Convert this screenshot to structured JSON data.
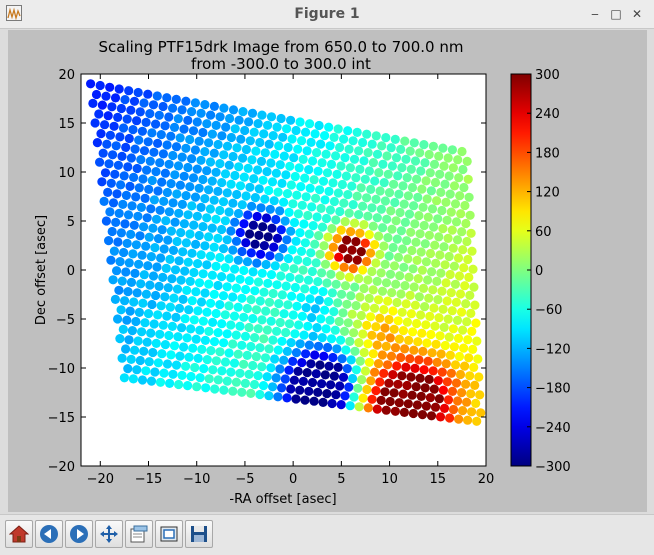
{
  "window": {
    "title": "Figure 1"
  },
  "window_controls": {
    "minimize": "‒",
    "maximize": "□",
    "close": "✕"
  },
  "toolbar": {
    "buttons": [
      "home-icon",
      "back-icon",
      "forward-icon",
      "pan-icon",
      "configure-icon",
      "zoom-icon",
      "save-icon"
    ]
  },
  "chart_data": {
    "type": "scatter",
    "title": "Scaling PTF15drk Image from 650.0 to 700.0 nm\nfrom -300.0 to 300.0 int",
    "xlabel": "-RA offset [asec]",
    "ylabel": "Dec offset [asec]",
    "xlim": [
      -22,
      20
    ],
    "ylim": [
      -20,
      20
    ],
    "xticks": [
      -20,
      -15,
      -10,
      -5,
      0,
      5,
      10,
      15,
      20
    ],
    "yticks": [
      -20,
      -15,
      -10,
      -5,
      0,
      5,
      10,
      15,
      20
    ],
    "grid": false,
    "colormap": "jet",
    "colorbar": {
      "min": -300,
      "max": 300,
      "ticks": [
        300,
        240,
        180,
        120,
        60,
        0,
        -60,
        -120,
        -180,
        -240,
        -300
      ]
    },
    "field_corners": [
      [
        -21,
        19
      ],
      [
        18,
        12
      ],
      [
        19.5,
        -15.5
      ],
      [
        -17.5,
        -11
      ]
    ],
    "background_value": -40,
    "features": [
      {
        "x": -3.3,
        "y": 3.5,
        "value": -290,
        "radius": 1.6,
        "halo": 3.2
      },
      {
        "x": 6.0,
        "y": 2.0,
        "value": 300,
        "radius": 1.2,
        "halo": 3.0
      },
      {
        "x": 2.8,
        "y": -12.0,
        "value": -290,
        "radius": 3.0,
        "halo": 5.0
      },
      {
        "x": 12.0,
        "y": -13.5,
        "value": 300,
        "radius": 3.2,
        "halo": 5.5
      },
      {
        "x": 9.5,
        "y": -6.5,
        "value": 160,
        "radius": 0.0,
        "halo": 7.0
      },
      {
        "x": 2.0,
        "y": -4.0,
        "value": -150,
        "radius": 0.0,
        "halo": 5.0
      }
    ]
  }
}
